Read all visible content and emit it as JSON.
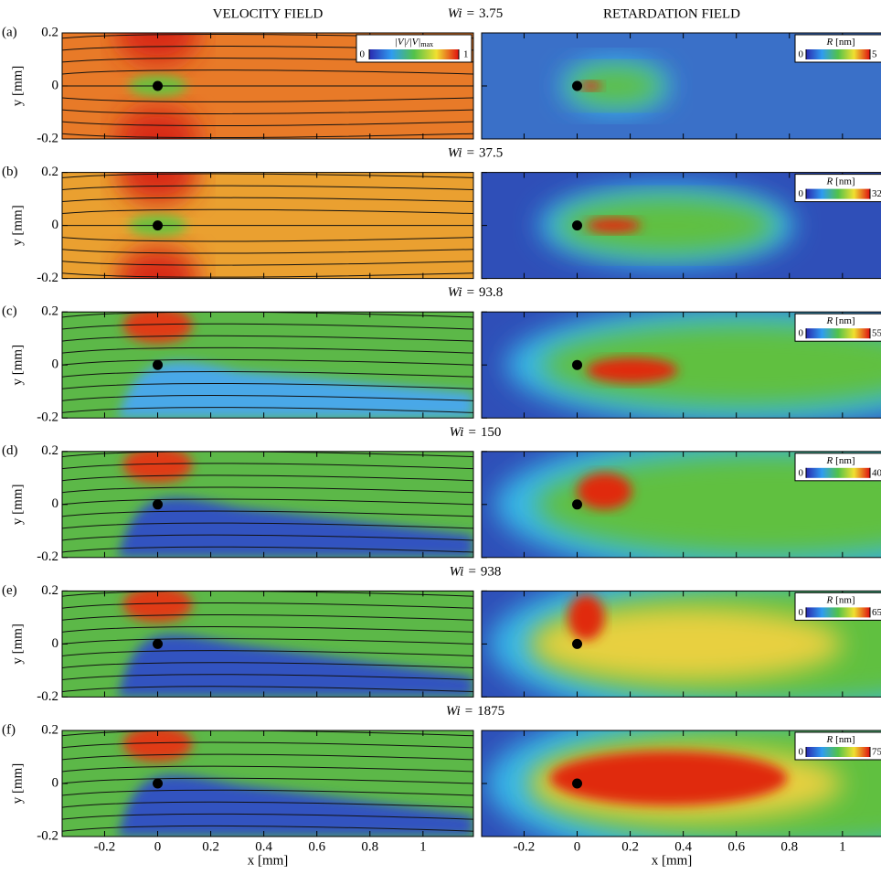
{
  "column_titles": [
    "VELOCITY FIELD",
    "RETARDATION FIELD"
  ],
  "x_label": "x [mm]",
  "y_label": "y [mm]",
  "xlim": [
    -0.36,
    1.19
  ],
  "xticks": [
    -0.2,
    0,
    0.2,
    0.4,
    0.6,
    0.8,
    1
  ],
  "ylim": [
    -0.2,
    0.2
  ],
  "yticks": [
    -0.2,
    0,
    0.2
  ],
  "wi_symbol": "Wi",
  "equals": "=",
  "velocity_colorbar": {
    "label": "|V|/|V|",
    "subscript": "max",
    "ticks": [
      0,
      1
    ]
  },
  "retardation_colorbar": {
    "symbol": "R",
    "unit": "[nm]"
  },
  "panels": [
    {
      "letter": "(a)",
      "wi": 3.75,
      "r_ticks": [
        0,
        5
      ]
    },
    {
      "letter": "(b)",
      "wi": 37.5,
      "r_ticks": [
        0,
        32
      ]
    },
    {
      "letter": "(c)",
      "wi": 93.8,
      "r_ticks": [
        0,
        55
      ]
    },
    {
      "letter": "(d)",
      "wi": 150,
      "r_ticks": [
        0,
        40
      ]
    },
    {
      "letter": "(e)",
      "wi": 938,
      "r_ticks": [
        0,
        65
      ]
    },
    {
      "letter": "(f)",
      "wi": 1875,
      "r_ticks": [
        0,
        75
      ]
    }
  ]
}
